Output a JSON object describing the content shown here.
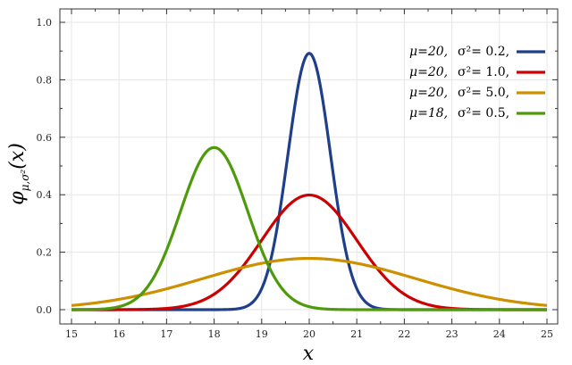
{
  "chart_data": {
    "type": "line",
    "xlabel": "x",
    "ylabel": "φμ,σ²(x)",
    "ylabel_parts": {
      "main": "φ",
      "sub": "μ,σ²",
      "arg": "(x)"
    },
    "xlim": [
      15,
      25
    ],
    "ylim": [
      0.0,
      1.0
    ],
    "xticks": [
      15,
      16,
      17,
      18,
      19,
      20,
      21,
      22,
      23,
      24,
      25
    ],
    "yticks": [
      0.0,
      0.2,
      0.4,
      0.6,
      0.8,
      1.0
    ],
    "ytick_labels": [
      "0.0",
      "0.2",
      "0.4",
      "0.6",
      "0.8",
      "1.0"
    ],
    "grid": true,
    "legend_position": "top-right",
    "series": [
      {
        "name": "μ=20, σ²=0.2,",
        "mu_label": "μ=20,",
        "sigma_label": "σ²= 0.2,",
        "mu": 20,
        "sigma2": 0.2,
        "color": "#1f3f8a"
      },
      {
        "name": "μ=20, σ²=1.0,",
        "mu_label": "μ=20,",
        "sigma_label": "σ²= 1.0,",
        "mu": 20,
        "sigma2": 1.0,
        "color": "#cc0000"
      },
      {
        "name": "μ=20, σ²=5.0,",
        "mu_label": "μ=20,",
        "sigma_label": "σ²= 5.0,",
        "mu": 20,
        "sigma2": 5.0,
        "color": "#cc9000"
      },
      {
        "name": "μ=18, σ²=0.5,",
        "mu_label": "μ=18,",
        "sigma_label": "σ²= 0.5,",
        "mu": 18,
        "sigma2": 0.5,
        "color": "#4e9a0a"
      }
    ]
  }
}
